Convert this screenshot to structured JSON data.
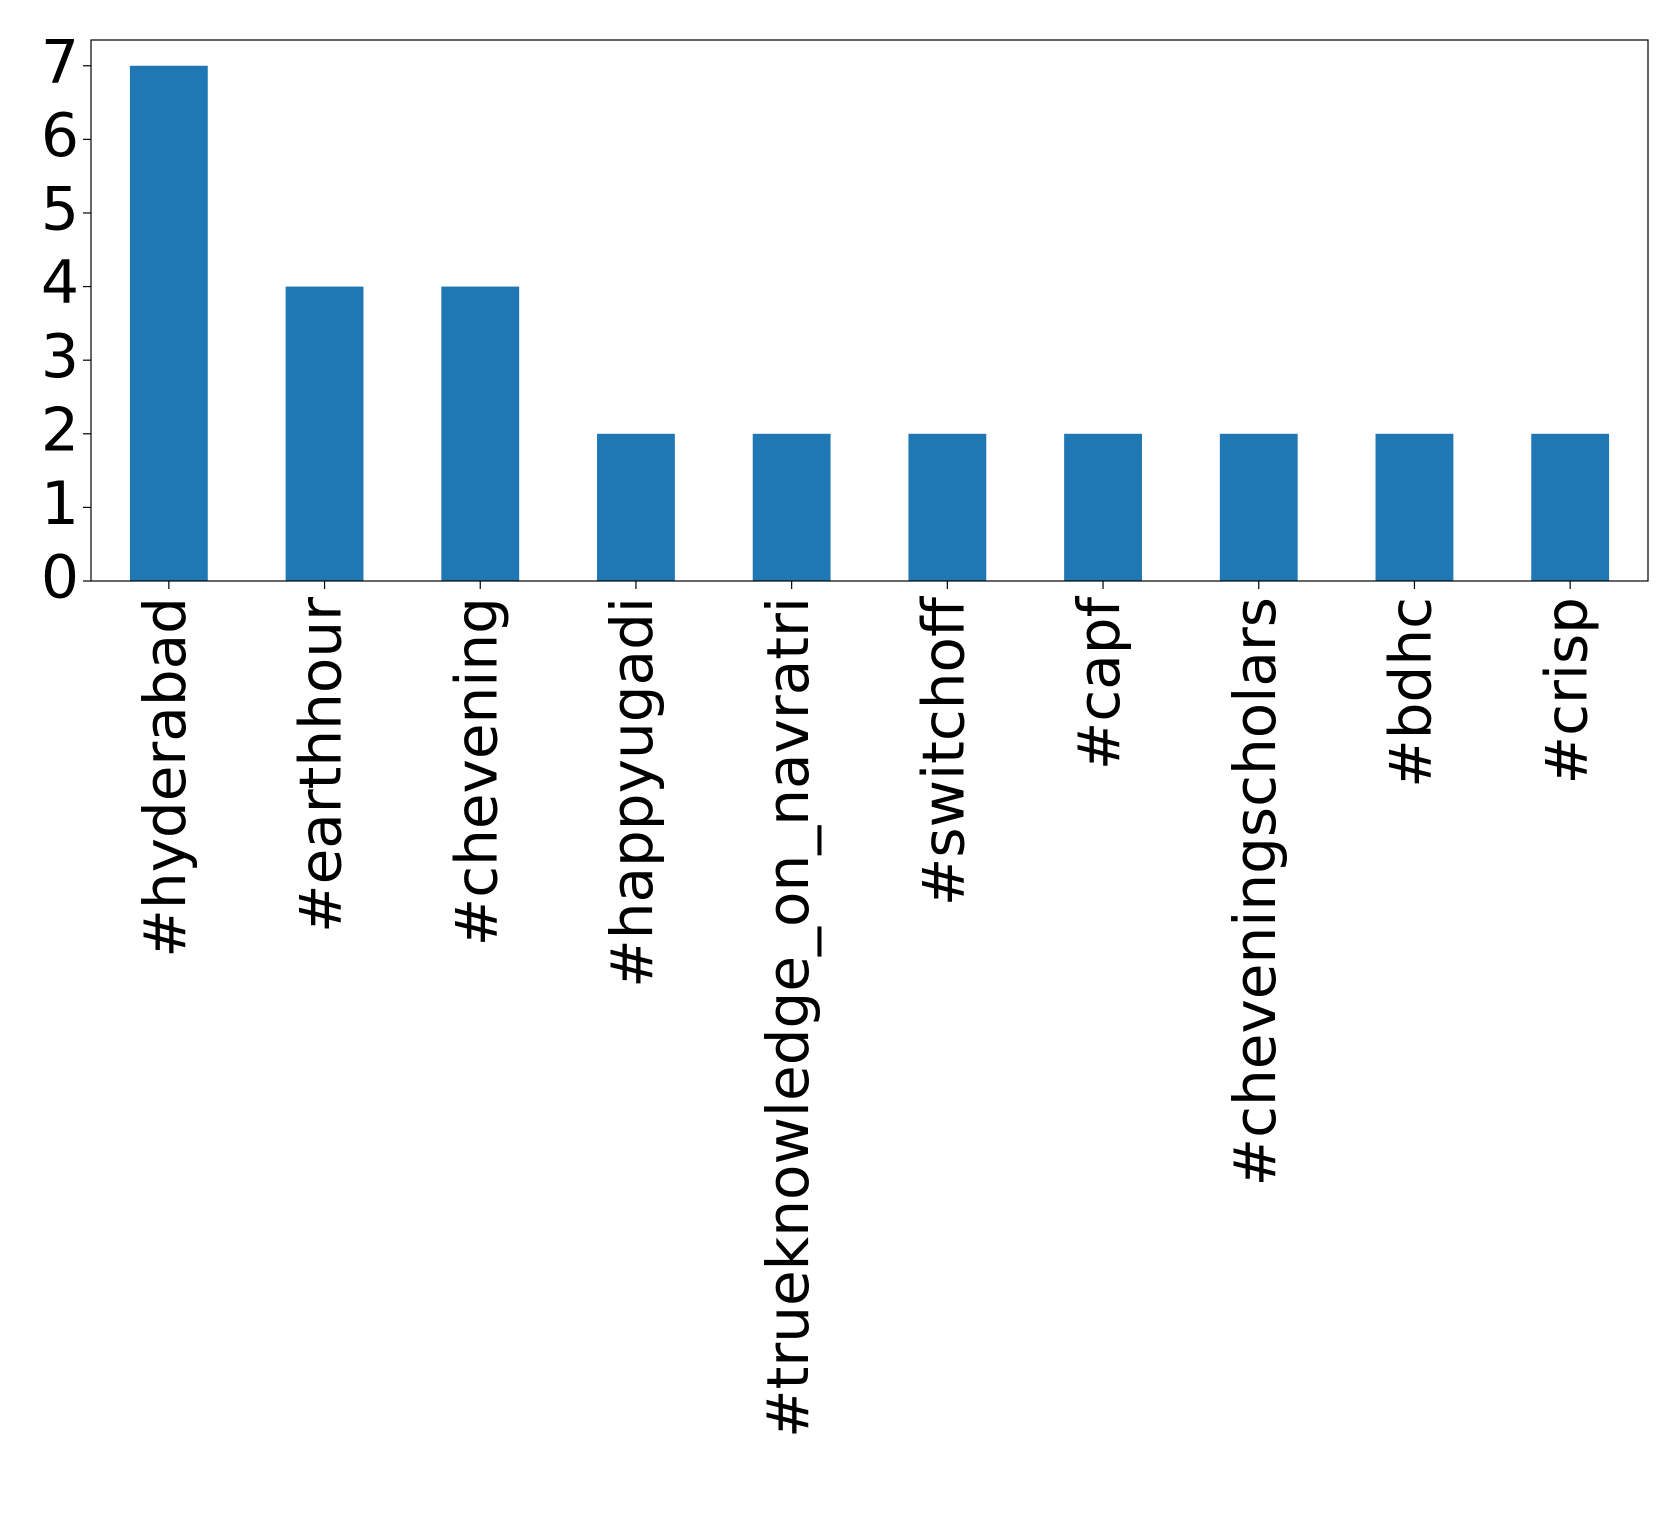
{
  "chart_data": {
    "type": "bar",
    "categories": [
      "#hyderabad",
      "#earthhour",
      "#chevening",
      "#happyugadi",
      "#trueknowledge_on_navratri",
      "#switchoff",
      "#capf",
      "#cheveningscholars",
      "#bdhc",
      "#crisp"
    ],
    "values": [
      7,
      4,
      4,
      2,
      2,
      2,
      2,
      2,
      2,
      2
    ],
    "color": "#1f77b4",
    "ylim": [
      0,
      7.35
    ],
    "yticks": [
      0,
      1,
      2,
      3,
      4,
      5,
      6,
      7
    ],
    "grid": false
  }
}
